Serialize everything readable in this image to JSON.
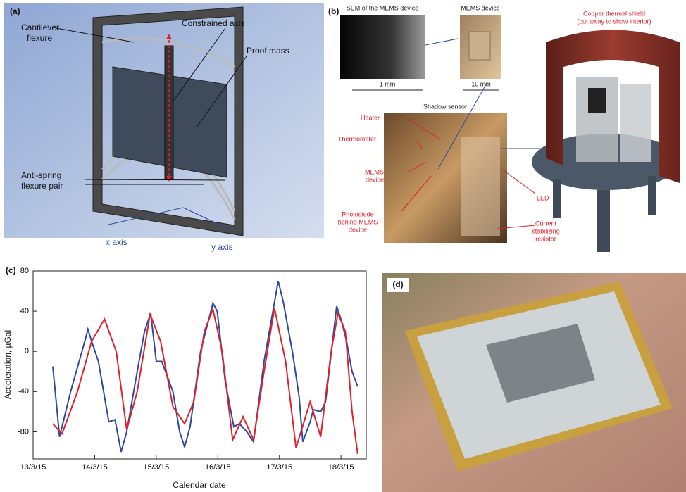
{
  "panel_a": {
    "label": "(a)",
    "cantilever": [
      "Cantilever",
      "flexure"
    ],
    "constrained": "Constrained axis",
    "proof_mass": "Proof mass",
    "anti_spring": [
      "Anti-spring",
      "flexure pair"
    ],
    "x_axis": "x axis",
    "y_axis": "y axis"
  },
  "panel_b": {
    "label": "(b)",
    "sem_title": "SEM of the MEMS device",
    "mems_title": "MEMS device",
    "scale_1": "1 mm",
    "scale_2": "10 mm",
    "shadow_sensor": "Shadow sensor",
    "shield": [
      "Copper thermal shield",
      "(cut away to show interior)"
    ],
    "heater": "Heater",
    "thermometer": "Thermometer",
    "mems": [
      "MEMS",
      "device"
    ],
    "photodiode": [
      "Photodiode",
      "behind MEMS",
      "device"
    ],
    "led": "LED",
    "resistor": [
      "Current",
      "stabilizing",
      "resistor"
    ]
  },
  "panel_c_label": "(c)",
  "panel_d_label": "(d)",
  "chart_data": {
    "type": "line",
    "xlabel": "Calendar date",
    "ylabel": "Acceleration, µGal",
    "xlim": [
      13,
      18.41
    ],
    "ylim": [
      -107,
      80
    ],
    "xticks": [
      {
        "value": 13,
        "label": "13/3/15"
      },
      {
        "value": 14,
        "label": "14/3/15"
      },
      {
        "value": 15,
        "label": "15/3/15"
      },
      {
        "value": 16,
        "label": "16/3/15"
      },
      {
        "value": 17,
        "label": "17/3/15"
      },
      {
        "value": 18,
        "label": "18/3/15"
      }
    ],
    "yticks": [
      -80,
      -40,
      0,
      40,
      80
    ],
    "series": [
      {
        "color": "#2b4aa0",
        "x": [
          13.32,
          13.43,
          13.61,
          13.84,
          13.89,
          13.95,
          14.06,
          14.23,
          14.33,
          14.43,
          14.52,
          14.69,
          14.81,
          14.91,
          15.0,
          15.09,
          15.27,
          15.38,
          15.46,
          15.55,
          15.72,
          15.92,
          15.99,
          16.12,
          16.26,
          16.35,
          16.47,
          16.58,
          16.75,
          16.98,
          17.06,
          17.15,
          17.21,
          17.32,
          17.38,
          17.5,
          17.55,
          17.67,
          17.75,
          17.93,
          18.01,
          18.09,
          18.18,
          18.27
        ],
        "values": [
          -15,
          -85,
          -40,
          10,
          22,
          10,
          -10,
          -70,
          -68,
          -100,
          -80,
          -20,
          20,
          38,
          -10,
          -10,
          -40,
          -80,
          -95,
          -75,
          0,
          48,
          40,
          -30,
          -75,
          -72,
          -80,
          -90,
          -10,
          70,
          50,
          20,
          0,
          -45,
          -90,
          -70,
          -58,
          -60,
          -50,
          45,
          30,
          10,
          -20,
          -35
        ]
      },
      {
        "color": "#e0202a",
        "x": [
          13.32,
          13.47,
          13.72,
          13.95,
          14.16,
          14.35,
          14.52,
          14.69,
          14.9,
          15.07,
          15.27,
          15.46,
          15.61,
          15.78,
          15.92,
          16.07,
          16.24,
          16.41,
          16.58,
          16.75,
          16.92,
          17.1,
          17.27,
          17.5,
          17.67,
          17.84,
          17.95,
          18.07,
          18.18,
          18.27
        ],
        "values": [
          -72,
          -82,
          -40,
          10,
          32,
          0,
          -78,
          -40,
          37,
          10,
          -55,
          -72,
          -50,
          20,
          42,
          0,
          -88,
          -65,
          -88,
          -20,
          43,
          -10,
          -96,
          -50,
          -85,
          0,
          38,
          20,
          -60,
          -102
        ]
      }
    ]
  }
}
